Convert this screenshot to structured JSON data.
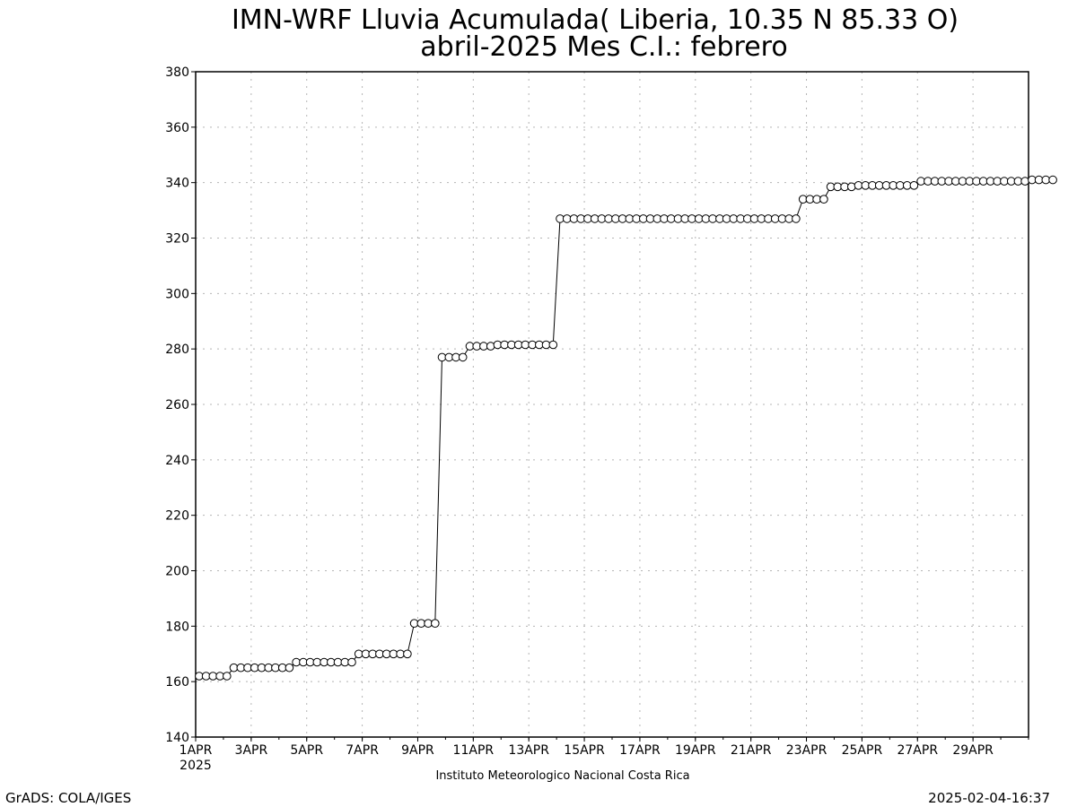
{
  "chart_data": {
    "type": "line",
    "title": "IMN-WRF  Lluvia Acumulada( Liberia, 10.35  N 85.33  O)",
    "subtitle": "abril-2025 Mes C.I.: febrero",
    "xlabel": "",
    "ylabel": "",
    "ylim": [
      140,
      380
    ],
    "xlim": [
      "1APR2025 00Z",
      "30APR2025 24Z"
    ],
    "x_step_hours": 6,
    "yticks": [
      140,
      160,
      180,
      200,
      220,
      240,
      260,
      280,
      300,
      320,
      340,
      360,
      380
    ],
    "xticks": [
      {
        "day": 1,
        "label": "1APR"
      },
      {
        "day": 3,
        "label": "3APR"
      },
      {
        "day": 5,
        "label": "5APR"
      },
      {
        "day": 7,
        "label": "7APR"
      },
      {
        "day": 9,
        "label": "9APR"
      },
      {
        "day": 11,
        "label": "11APR"
      },
      {
        "day": 13,
        "label": "13APR"
      },
      {
        "day": 15,
        "label": "15APR"
      },
      {
        "day": 17,
        "label": "17APR"
      },
      {
        "day": 19,
        "label": "19APR"
      },
      {
        "day": 21,
        "label": "21APR"
      },
      {
        "day": 23,
        "label": "23APR"
      },
      {
        "day": 25,
        "label": "25APR"
      },
      {
        "day": 27,
        "label": "27APR"
      },
      {
        "day": 29,
        "label": "29APR"
      }
    ],
    "year_label": "2025",
    "grid": true,
    "marker": "open-circle",
    "series": [
      {
        "values": [
          162,
          162,
          162,
          162,
          162,
          165,
          165,
          165,
          165,
          165,
          165,
          165,
          165,
          165,
          167,
          167,
          167,
          167,
          167,
          167,
          167,
          167,
          167,
          170,
          170,
          170,
          170,
          170,
          170,
          170,
          170,
          181,
          181,
          181,
          181,
          277,
          277,
          277,
          277,
          281,
          281,
          281,
          281,
          281.5,
          281.5,
          281.5,
          281.5,
          281.5,
          281.5,
          281.5,
          281.5,
          281.5,
          327,
          327,
          327,
          327,
          327,
          327,
          327,
          327,
          327,
          327,
          327,
          327,
          327,
          327,
          327,
          327,
          327,
          327,
          327,
          327,
          327,
          327,
          327,
          327,
          327,
          327,
          327,
          327,
          327,
          327,
          327,
          327,
          327,
          327,
          327,
          334,
          334,
          334,
          334,
          338.5,
          338.5,
          338.5,
          338.5,
          339,
          339,
          339,
          339,
          339,
          339,
          339,
          339,
          339,
          340.5,
          340.5,
          340.5,
          340.5,
          340.5,
          340.5,
          340.5,
          340.5,
          340.5,
          340.5,
          340.5,
          340.5,
          340.5,
          340.5,
          340.5,
          340.5,
          341,
          341,
          341,
          341
        ]
      }
    ]
  },
  "footer": {
    "institute": "Instituto Meteorologico Nacional Costa Rica",
    "left_credit": "GrADS: COLA/IGES",
    "right_stamp": "2025-02-04-16:37"
  },
  "colors": {
    "line": "#000000",
    "marker_fill": "#ffffff",
    "grid": "#b4b4b4",
    "background": "#ffffff"
  }
}
